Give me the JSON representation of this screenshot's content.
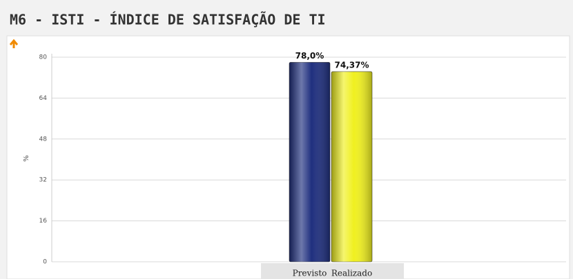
{
  "chart_data": {
    "type": "bar",
    "title": "M6 - ISTI - ÍNDICE DE SATISFAÇÃO DE TI",
    "y_label": "%",
    "categories": [
      "Previsto",
      "Realizado"
    ],
    "values": [
      78.0,
      74.37
    ],
    "value_labels": [
      "78,0%",
      "74,37%"
    ],
    "colors": [
      "#1f2f7e",
      "#f0f020"
    ],
    "ylim": [
      0,
      80
    ],
    "yticks": [
      0,
      16,
      32,
      48,
      64,
      80
    ],
    "grid": true
  }
}
